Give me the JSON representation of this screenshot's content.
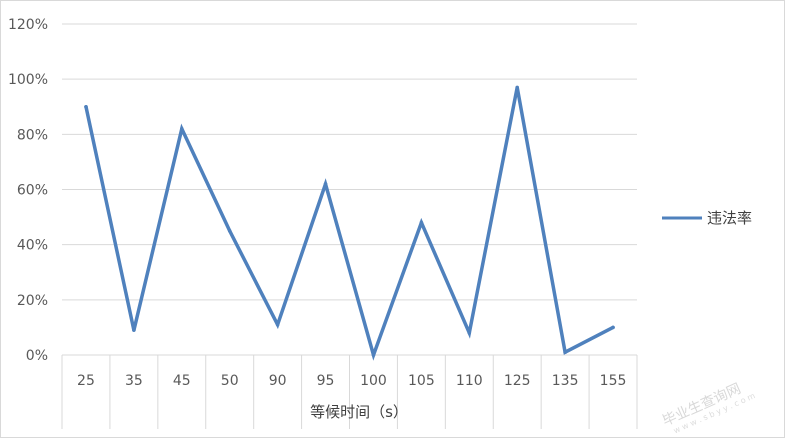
{
  "chart_data": {
    "type": "line",
    "categories": [
      "25",
      "35",
      "45",
      "50",
      "90",
      "95",
      "100",
      "105",
      "110",
      "125",
      "135",
      "155"
    ],
    "series": [
      {
        "name": "违法率",
        "values": [
          0.9,
          0.09,
          0.82,
          0.45,
          0.11,
          0.62,
          0.0,
          0.48,
          0.08,
          0.97,
          0.01,
          0.1
        ],
        "color": "#4f81bd"
      }
    ],
    "xlabel": "等候时间（s）",
    "ylabel": "",
    "ylim": [
      0,
      1.2
    ],
    "yticks": [
      "0%",
      "20%",
      "40%",
      "60%",
      "80%",
      "100%",
      "120%"
    ],
    "grid": true,
    "legend_position": "right"
  },
  "watermark": {
    "text": "毕业生查询网",
    "sub": "w w w . s b y y . c o m"
  }
}
